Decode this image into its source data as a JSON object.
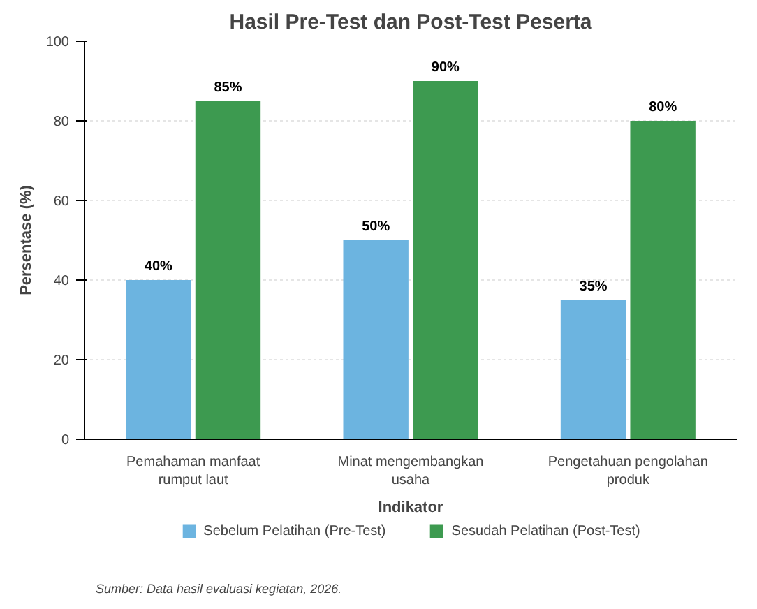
{
  "chart_data": {
    "type": "bar",
    "title": "Hasil Pre-Test dan Post-Test Peserta",
    "xlabel": "Indikator",
    "ylabel": "Persentase (%)",
    "categories": [
      "Pemahaman manfaat\nrumput laut",
      "Minat mengembangkan\nusaha",
      "Pengetahuan pengolahan\nproduk"
    ],
    "series": [
      {
        "name": "Sebelum Pelatihan (Pre-Test)",
        "color": "#6cb4e0",
        "values": [
          40,
          50,
          35
        ],
        "value_labels": [
          "40%",
          "50%",
          "35%"
        ]
      },
      {
        "name": "Sesudah Pelatihan (Post-Test)",
        "color": "#3d9a50",
        "values": [
          85,
          90,
          80
        ],
        "value_labels": [
          "85%",
          "90%",
          "80%"
        ]
      }
    ],
    "ylim": [
      0,
      100
    ],
    "yticks": [
      0,
      20,
      40,
      60,
      80,
      100
    ],
    "grid": "y",
    "legend": "bottom",
    "annotations": [
      "Sumber: Data hasil evaluasi kegiatan, 2026."
    ]
  }
}
